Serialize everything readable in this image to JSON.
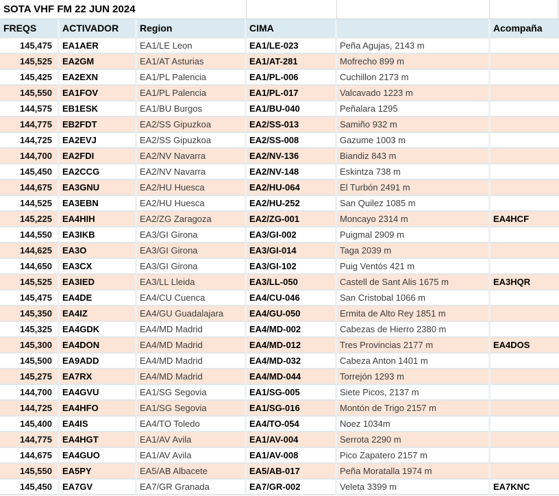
{
  "title": "SOTA VHF FM 22 JUN 2024",
  "colors": {
    "header_bg": "#DAE9F2",
    "row_alt_bg": "#FCE4D6",
    "row_bg": "#FFFFFF"
  },
  "table": {
    "columns": [
      "FREQS",
      "ACTIVADOR",
      "Region",
      "CIMA",
      "",
      "Acompaña"
    ],
    "rows": [
      {
        "freq": "145,475",
        "activador": "EA1AER",
        "region": "EA1/LE Leon",
        "cima": "EA1/LE-023",
        "summit": "Peña Agujas, 2143 m",
        "acompana": ""
      },
      {
        "freq": "145,525",
        "activador": "EA2GM",
        "region": "EA1/AT Asturias",
        "cima": "EA1/AT-281",
        "summit": "Mofrecho 899 m",
        "acompana": ""
      },
      {
        "freq": "145,425",
        "activador": "EA2EXN",
        "region": "EA1/PL Palencia",
        "cima": "EA1/PL-006",
        "summit": "Cuchillon 2173 m",
        "acompana": ""
      },
      {
        "freq": "145,550",
        "activador": "EA1FOV",
        "region": "EA1/PL Palencia",
        "cima": "EA1/PL-017",
        "summit": "Valcavado 1223 m",
        "acompana": ""
      },
      {
        "freq": "144,575",
        "activador": "EB1ESK",
        "region": "EA1/BU Burgos",
        "cima": "EA1/BU-040",
        "summit": "Peñalara 1295",
        "acompana": ""
      },
      {
        "freq": "144,775",
        "activador": "EB2FDT",
        "region": "EA2/SS Gipuzkoa",
        "cima": "EA2/SS-013",
        "summit": "Samiño 932 m",
        "acompana": ""
      },
      {
        "freq": "144,725",
        "activador": "EA2EVJ",
        "region": "EA2/SS Gipuzkoa",
        "cima": "EA2/SS-008",
        "summit": "Gazume 1003 m",
        "acompana": ""
      },
      {
        "freq": "144,700",
        "activador": "EA2FDI",
        "region": "EA2/NV Navarra",
        "cima": "EA2/NV-136",
        "summit": "Biandiz 843 m",
        "acompana": ""
      },
      {
        "freq": "145,450",
        "activador": "EA2CCG",
        "region": "EA2/NV Navarra",
        "cima": "EA2/NV-148",
        "summit": "Eskintza 738 m",
        "acompana": ""
      },
      {
        "freq": "144,675",
        "activador": "EA3GNU",
        "region": "EA2/HU Huesca",
        "cima": "EA2/HU-064",
        "summit": "El Turbón 2491 m",
        "acompana": ""
      },
      {
        "freq": "144,525",
        "activador": "EA3EBN",
        "region": "EA2/HU Huesca",
        "cima": "EA2/HU-252",
        "summit": "San Quilez 1085 m",
        "acompana": ""
      },
      {
        "freq": "145,225",
        "activador": "EA4HIH",
        "region": "EA2/ZG Zaragoza",
        "cima": "EA2/ZG-001",
        "summit": "Moncayo 2314 m",
        "acompana": "EA4HCF"
      },
      {
        "freq": "144,550",
        "activador": "EA3IKB",
        "region": "EA3/GI Girona",
        "cima": "EA3/GI-002",
        "summit": "Puigmal 2909 m",
        "acompana": ""
      },
      {
        "freq": "144,625",
        "activador": "EA3O",
        "region": "EA3/GI Girona",
        "cima": "EA3/GI-014",
        "summit": "Taga 2039 m",
        "acompana": ""
      },
      {
        "freq": "144,650",
        "activador": "EA3CX",
        "region": "EA3/GI Girona",
        "cima": "EA3/GI-102",
        "summit": "Puig Ventós 421 m",
        "acompana": ""
      },
      {
        "freq": "145,525",
        "activador": "EA3IED",
        "region": "EA3/LL Lleida",
        "cima": "EA3/LL-050",
        "summit": "Castell de Sant Alis 1675 m",
        "acompana": "EA3HQR"
      },
      {
        "freq": "145,475",
        "activador": "EA4DE",
        "region": "EA4/CU Cuenca",
        "cima": "EA4/CU-046",
        "summit": "San Cristobal 1066 m",
        "acompana": ""
      },
      {
        "freq": "145,350",
        "activador": "EA4IZ",
        "region": "EA4/GU Guadalajara",
        "cima": "EA4/GU-050",
        "summit": "Ermita de Alto Rey 1851 m",
        "acompana": ""
      },
      {
        "freq": "145,325",
        "activador": "EA4GDK",
        "region": "EA4/MD Madrid",
        "cima": "EA4/MD-002",
        "summit": "Cabezas de Hierro 2380 m",
        "acompana": ""
      },
      {
        "freq": "145,300",
        "activador": "EA4DON",
        "region": "EA4/MD Madrid",
        "cima": "EA4/MD-012",
        "summit": "Tres Provincias 2177 m",
        "acompana": "EA4DOS"
      },
      {
        "freq": "145,500",
        "activador": "EA9ADD",
        "region": "EA4/MD Madrid",
        "cima": "EA4/MD-032",
        "summit": "Cabeza Anton 1401 m",
        "acompana": ""
      },
      {
        "freq": "145,275",
        "activador": "EA7RX",
        "region": "EA4/MD Madrid",
        "cima": "EA4/MD-044",
        "summit": "Torrejón 1293 m",
        "acompana": ""
      },
      {
        "freq": "144,700",
        "activador": "EA4GVU",
        "region": "EA1/SG Segovia",
        "cima": "EA1/SG-005",
        "summit": "Siete Picos, 2137 m",
        "acompana": ""
      },
      {
        "freq": "144,725",
        "activador": "EA4HFO",
        "region": "EA1/SG Segovia",
        "cima": "EA1/SG-016",
        "summit": "Montón de Trigo 2157 m",
        "acompana": ""
      },
      {
        "freq": "145,400",
        "activador": "EA4IS",
        "region": "EA4/TO Toledo",
        "cima": "EA4/TO-054",
        "summit": "Noez 1034m",
        "acompana": ""
      },
      {
        "freq": "144,775",
        "activador": "EA4HGT",
        "region": "EA1/AV Avila",
        "cima": "EA1/AV-004",
        "summit": "Serrota 2290 m",
        "acompana": ""
      },
      {
        "freq": "144,675",
        "activador": "EA4GUO",
        "region": "EA1/AV Avila",
        "cima": "EA1/AV-008",
        "summit": "Pico Zapatero 2157 m",
        "acompana": ""
      },
      {
        "freq": "145,550",
        "activador": "EA5PY",
        "region": "EA5/AB Albacete",
        "cima": "EA5/AB-017",
        "summit": "Peña Moratalla 1974 m",
        "acompana": ""
      },
      {
        "freq": "145,450",
        "activador": "EA7GV",
        "region": "EA7/GR Granada",
        "cima": "EA7/GR-002",
        "summit": "Veleta 3399 m",
        "acompana": "EA7KNC"
      }
    ]
  }
}
